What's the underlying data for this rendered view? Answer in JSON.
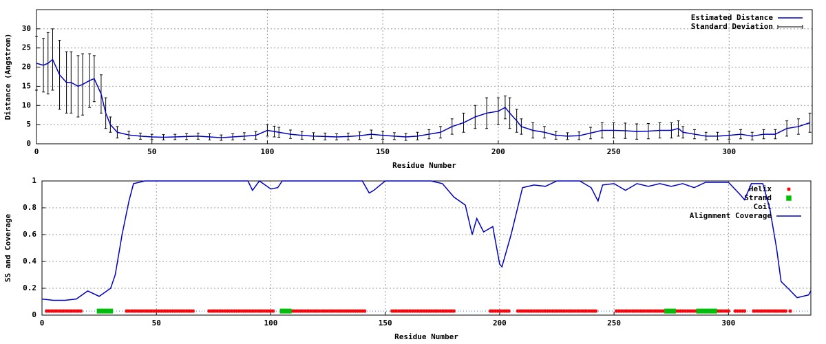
{
  "chart_data": [
    {
      "type": "line",
      "xlabel": "Residue Number",
      "ylabel": "Distance (Angstrom)",
      "xlim": [
        0,
        336
      ],
      "ylim": [
        0,
        35
      ],
      "xticks": [
        0,
        50,
        100,
        150,
        200,
        250,
        300
      ],
      "yticks": [
        0,
        5,
        10,
        15,
        20,
        25,
        30
      ],
      "grid": true,
      "legend": "upper right",
      "x": [
        0,
        3,
        5,
        7,
        10,
        13,
        15,
        18,
        20,
        23,
        25,
        28,
        30,
        32,
        35,
        40,
        45,
        50,
        55,
        60,
        65,
        70,
        75,
        80,
        85,
        90,
        95,
        100,
        103,
        105,
        110,
        115,
        120,
        125,
        130,
        135,
        140,
        145,
        150,
        155,
        160,
        165,
        170,
        175,
        180,
        185,
        190,
        195,
        200,
        203,
        205,
        208,
        210,
        215,
        220,
        225,
        230,
        235,
        240,
        245,
        250,
        255,
        260,
        265,
        270,
        275,
        278,
        280,
        285,
        290,
        295,
        300,
        305,
        310,
        315,
        320,
        325,
        330,
        335
      ],
      "series": [
        {
          "name": "Estimated Distance",
          "error_name": "Standard Deviation",
          "color": "#0000c0",
          "error_color": "#000000",
          "values": [
            21,
            20.5,
            21,
            22,
            18,
            16,
            16,
            15,
            15.5,
            16.5,
            17,
            13,
            8,
            5,
            3,
            2.3,
            2,
            1.8,
            1.7,
            1.8,
            1.9,
            2,
            1.8,
            1.6,
            1.8,
            2,
            2.2,
            3.5,
            3.2,
            3,
            2.5,
            2.2,
            2,
            1.9,
            1.8,
            1.9,
            2.1,
            2.5,
            2.2,
            2,
            1.8,
            2,
            2.5,
            3,
            4.5,
            5.5,
            7,
            8,
            8.5,
            9.5,
            8,
            6,
            4.5,
            3.5,
            3,
            2.2,
            2,
            2.1,
            2.8,
            3.5,
            3.5,
            3.4,
            3.2,
            3.3,
            3.5,
            3.5,
            4,
            3,
            2.5,
            2,
            2,
            2.2,
            2.5,
            2,
            2.5,
            2.5,
            4,
            4.5,
            5.5
          ],
          "errors": [
            7,
            7,
            8,
            8,
            9,
            8,
            8,
            8,
            8,
            7,
            6,
            5,
            4,
            2,
            1.5,
            1,
            0.8,
            0.7,
            0.7,
            0.7,
            0.8,
            0.8,
            0.8,
            0.7,
            0.8,
            0.9,
            1,
            1.5,
            1.4,
            1.3,
            1.1,
            1,
            0.9,
            0.9,
            0.8,
            0.9,
            1,
            1.1,
            1,
            0.9,
            0.9,
            1,
            1.2,
            1.5,
            2,
            2.5,
            3,
            4,
            3.5,
            3,
            4,
            3,
            2,
            2,
            1.5,
            1,
            0.9,
            1,
            1.5,
            2,
            2,
            2,
            2,
            2,
            2,
            2,
            2,
            1.5,
            1.2,
            1,
            1,
            1,
            1.2,
            1,
            1.2,
            1.2,
            2,
            2,
            2.5
          ]
        }
      ]
    },
    {
      "type": "line",
      "xlabel": "Residue Number",
      "ylabel": "SS and Coverage",
      "xlim": [
        0,
        336
      ],
      "ylim": [
        0,
        1
      ],
      "xticks": [
        0,
        50,
        100,
        150,
        200,
        250,
        300
      ],
      "yticks": [
        0,
        0.2,
        0.4,
        0.6,
        0.8,
        1
      ],
      "grid": true,
      "legend": "upper right",
      "x": [
        0,
        5,
        10,
        15,
        20,
        25,
        30,
        32,
        35,
        38,
        40,
        45,
        50,
        90,
        92,
        95,
        100,
        103,
        105,
        140,
        143,
        145,
        150,
        170,
        175,
        180,
        185,
        188,
        190,
        193,
        197,
        200,
        201,
        205,
        210,
        215,
        220,
        225,
        235,
        240,
        243,
        245,
        250,
        255,
        260,
        265,
        270,
        275,
        280,
        285,
        290,
        300,
        305,
        307,
        310,
        315,
        318,
        321,
        323,
        326,
        330,
        335,
        336
      ],
      "series": [
        {
          "name": "Helix",
          "color": "#ff0000",
          "marker": "star",
          "level": 0.03,
          "ranges": [
            [
              2,
              17
            ],
            [
              37,
              66
            ],
            [
              73,
              101
            ],
            [
              108,
              141
            ],
            [
              153,
              180
            ],
            [
              196,
              204
            ],
            [
              208,
              242
            ],
            [
              251,
              273
            ],
            [
              276,
              286
            ],
            [
              295,
              300
            ],
            [
              303,
              307
            ],
            [
              311,
              325
            ],
            [
              327,
              327
            ]
          ]
        },
        {
          "name": "Strand",
          "color": "#00c000",
          "marker": "square",
          "level": 0.03,
          "ranges": [
            [
              25,
              30
            ],
            [
              105,
              108
            ],
            [
              273,
              276
            ],
            [
              287,
              294
            ]
          ]
        },
        {
          "name": "Coil",
          "color": "#0080ff",
          "marker": "dot",
          "level": 0.03,
          "ranges": [
            [
              0,
              336
            ]
          ]
        },
        {
          "name": "Alignment Coverage",
          "color": "#0000c0",
          "values": [
            0.12,
            0.11,
            0.11,
            0.12,
            0.18,
            0.14,
            0.2,
            0.3,
            0.6,
            0.85,
            0.98,
            1,
            1,
            1,
            0.93,
            1,
            0.94,
            0.95,
            1,
            1,
            0.91,
            0.93,
            1,
            1,
            0.98,
            0.88,
            0.82,
            0.6,
            0.72,
            0.62,
            0.66,
            0.38,
            0.36,
            0.6,
            0.95,
            0.97,
            0.96,
            1,
            1,
            0.95,
            0.85,
            0.97,
            0.98,
            0.93,
            0.98,
            0.96,
            0.98,
            0.96,
            0.98,
            0.95,
            0.99,
            0.99,
            0.9,
            0.86,
            0.98,
            0.98,
            0.8,
            0.5,
            0.25,
            0.2,
            0.13,
            0.15,
            0.18
          ]
        }
      ]
    }
  ]
}
